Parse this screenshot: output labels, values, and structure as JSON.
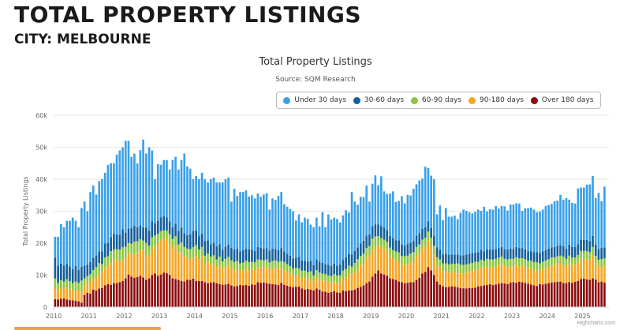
{
  "header": {
    "title": "TOTAL PROPERTY LISTINGS",
    "subtitle": "CITY: MELBOURNE"
  },
  "credit": "Highcharts.com",
  "colors": {
    "under30": "#3aa0e8",
    "d30_60": "#145f9a",
    "d60_90": "#8cc63f",
    "d90_180": "#f5a623",
    "over180": "#8b0d0d"
  },
  "chart_data": {
    "type": "bar",
    "stacked": true,
    "title": "Total Property Listings",
    "subtitle": "Source: SQM Research",
    "ylabel": "Total Property Listings",
    "ylim": [
      0,
      60000
    ],
    "yticks": [
      0,
      10000,
      20000,
      30000,
      40000,
      50000,
      60000
    ],
    "ytick_labels": [
      "0",
      "10k",
      "20k",
      "30k",
      "40k",
      "50k",
      "60k"
    ],
    "xlim": [
      2010,
      2025.75
    ],
    "xticks": [
      "2010",
      "2011",
      "2012",
      "2013",
      "2014",
      "2015",
      "2016",
      "2017",
      "2018",
      "2019",
      "2020",
      "2021",
      "2022",
      "2023",
      "2024",
      "2025"
    ],
    "legend_position": "top-right",
    "grid": true,
    "x_start": "2010-01",
    "series": [
      {
        "name": "Over 180 days",
        "color_key": "over180",
        "values": [
          2500,
          2400,
          2600,
          2700,
          2400,
          2200,
          2100,
          2000,
          1800,
          1400,
          3800,
          4500,
          4200,
          5500,
          5200,
          5800,
          6000,
          6800,
          7200,
          7000,
          7500,
          7500,
          7800,
          8200,
          9000,
          10200,
          9500,
          9200,
          9400,
          9800,
          9300,
          8500,
          9000,
          10000,
          10500,
          9800,
          10200,
          10800,
          10600,
          10000,
          9000,
          8800,
          8500,
          8200,
          8000,
          8600,
          8500,
          8900,
          8200,
          8200,
          8200,
          7800,
          7500,
          7700,
          7800,
          7500,
          7200,
          7000,
          7100,
          7300,
          6800,
          6500,
          6600,
          6900,
          6800,
          6900,
          6700,
          7100,
          7000,
          7800,
          7600,
          7700,
          7500,
          7300,
          7200,
          7100,
          6900,
          7600,
          7000,
          6700,
          6400,
          6200,
          6300,
          6400,
          5800,
          5500,
          5700,
          5500,
          5200,
          5800,
          5400,
          4900,
          4800,
          4500,
          4700,
          5000,
          4600,
          4500,
          5200,
          5000,
          5200,
          5200,
          5500,
          6000,
          6300,
          6800,
          7500,
          8000,
          9500,
          10500,
          11500,
          10500,
          10200,
          9800,
          9000,
          8800,
          8500,
          8000,
          7800,
          7500,
          7600,
          7800,
          7800,
          8500,
          9200,
          10500,
          11000,
          12500,
          11500,
          10000,
          8000,
          7000,
          6500,
          6200,
          6300,
          6500,
          6400,
          6200,
          6000,
          5900,
          5800,
          6000,
          6000,
          6100,
          6500,
          6600,
          6800,
          6900,
          7200,
          6900,
          7100,
          7300,
          7500,
          7400,
          7200,
          7700,
          7800,
          7600,
          7900,
          7800,
          7600,
          7300,
          7100,
          6800,
          6600,
          7200,
          7100,
          7300,
          7500,
          7700,
          7800,
          7900,
          8000,
          7600,
          7500,
          7800,
          7600,
          7900,
          8200,
          8800,
          8900,
          8700,
          8500,
          9000,
          8600,
          7800,
          8000,
          7700
        ]
      },
      {
        "name": "90-180 days",
        "color_key": "d90_180",
        "values": [
          3500,
          3000,
          3200,
          3400,
          3600,
          3300,
          3200,
          3200,
          3500,
          3500,
          2800,
          3200,
          3700,
          3500,
          4000,
          4700,
          5000,
          5700,
          6000,
          6800,
          7500,
          7300,
          6700,
          6300,
          6500,
          6800,
          7000,
          7300,
          7600,
          8000,
          8700,
          8000,
          7000,
          8000,
          8700,
          10200,
          10800,
          10700,
          10700,
          10000,
          9500,
          10000,
          8500,
          8800,
          8000,
          6900,
          6400,
          6600,
          7800,
          6800,
          7800,
          5700,
          6500,
          5600,
          5700,
          5000,
          5800,
          5000,
          5400,
          6000,
          5600,
          5000,
          5400,
          4600,
          4700,
          5300,
          4600,
          4900,
          4500,
          4700,
          4900,
          4700,
          5000,
          4700,
          4700,
          5400,
          4900,
          4700,
          4800,
          4300,
          4200,
          3800,
          3700,
          3500,
          3200,
          3700,
          3200,
          3400,
          2800,
          3600,
          3300,
          3300,
          3500,
          3300,
          2900,
          3000,
          3000,
          3200,
          3800,
          4300,
          5300,
          5000,
          5500,
          6000,
          7000,
          6900,
          8000,
          8300,
          8500,
          8500,
          7800,
          8500,
          8000,
          7800,
          7000,
          6200,
          6300,
          6200,
          5400,
          5600,
          5800,
          6400,
          6600,
          7400,
          7800,
          7900,
          8100,
          8400,
          7400,
          6500,
          5000,
          5500,
          4800,
          4900,
          4500,
          4700,
          4300,
          4800,
          4600,
          4700,
          5000,
          5200,
          5300,
          5600,
          5400,
          5800,
          5400,
          5700,
          5400,
          5500,
          5500,
          6000,
          5900,
          5500,
          5200,
          4900,
          5000,
          5700,
          4900,
          5100,
          5000,
          5000,
          4900,
          4800,
          5000,
          4300,
          4700,
          5000,
          5100,
          5300,
          5300,
          5700,
          5600,
          5800,
          5200,
          5800,
          5600,
          5300,
          5700,
          6300,
          6200,
          6200,
          6200,
          7300,
          5200,
          4700,
          4700,
          5200,
          4900
        ]
      },
      {
        "name": "60-90 days",
        "color_key": "d60_90",
        "values": [
          3000,
          2200,
          2600,
          1900,
          2700,
          2600,
          2200,
          2800,
          2300,
          3400,
          2400,
          2000,
          2400,
          2600,
          3300,
          3300,
          2500,
          3000,
          2700,
          3700,
          3000,
          3300,
          3500,
          4200,
          3400,
          3100,
          3300,
          4000,
          3600,
          3400,
          2800,
          3600,
          3200,
          3800,
          3200,
          2900,
          2800,
          2500,
          2600,
          2800,
          2800,
          3400,
          2600,
          3200,
          2800,
          2800,
          3200,
          3200,
          3400,
          3000,
          2800,
          2600,
          2800,
          2500,
          2700,
          2400,
          2800,
          2300,
          2600,
          2400,
          2200,
          2600,
          2400,
          2200,
          2400,
          2300,
          2800,
          2200,
          2500,
          2400,
          2300,
          2200,
          2400,
          2000,
          2500,
          2100,
          2400,
          2100,
          2300,
          2400,
          2200,
          2100,
          2300,
          2200,
          2400,
          2200,
          2000,
          2300,
          2000,
          2200,
          2100,
          2300,
          2000,
          2100,
          2100,
          2300,
          2300,
          2300,
          2400,
          2600,
          2500,
          2500,
          2800,
          3000,
          2700,
          3000,
          3000,
          2800,
          3400,
          3100,
          2900,
          2600,
          2900,
          2800,
          2600,
          2800,
          2600,
          2900,
          2800,
          2800,
          2700,
          2600,
          2800,
          2900,
          2600,
          2700,
          2600,
          2700,
          2800,
          2700,
          2600,
          2400,
          2400,
          2600,
          2500,
          2400,
          2800,
          2700,
          2700,
          2600,
          2500,
          2400,
          2500,
          2500,
          2300,
          2400,
          2300,
          2500,
          2300,
          2500,
          2500,
          2200,
          2400,
          2200,
          2500,
          2500,
          2300,
          2300,
          2500,
          2400,
          2400,
          2200,
          2500,
          2500,
          2400,
          2200,
          2400,
          2300,
          2400,
          2500,
          2400,
          2300,
          2500,
          2400,
          2400,
          2500,
          2300,
          2300,
          2400,
          2500,
          2500,
          2600,
          2500,
          2500,
          2200,
          2300,
          2300,
          2400,
          2300
        ]
      },
      {
        "name": "30-60 days",
        "color_key": "d30_60",
        "values": [
          6500,
          5400,
          5200,
          5000,
          4800,
          4600,
          4400,
          4900,
          4100,
          4300,
          4000,
          3600,
          3800,
          3800,
          3700,
          3600,
          3900,
          4400,
          4200,
          4400,
          5000,
          4600,
          4600,
          5600,
          4400,
          4500,
          4900,
          5000,
          4400,
          4400,
          4100,
          4800,
          4800,
          5000,
          3800,
          4100,
          4300,
          4400,
          4200,
          4000,
          3800,
          3900,
          4300,
          4600,
          4300,
          4200,
          4700,
          5100,
          4600,
          4200,
          4200,
          4600,
          4100,
          3800,
          3800,
          4100,
          3900,
          3600,
          3800,
          3800,
          3900,
          3900,
          3900,
          3700,
          3900,
          3800,
          4000,
          3700,
          3600,
          3900,
          3800,
          3700,
          3500,
          3700,
          3900,
          3600,
          3600,
          4000,
          3300,
          3300,
          3300,
          3100,
          3200,
          3600,
          3200,
          3100,
          3300,
          3300,
          3100,
          3300,
          3400,
          3400,
          3100,
          3300,
          3200,
          3300,
          3100,
          3300,
          3400,
          3700,
          3600,
          3800,
          3800,
          3700,
          3900,
          4100,
          3900,
          3600,
          3900,
          3800,
          3600,
          3800,
          3800,
          3700,
          3700,
          3700,
          3500,
          3800,
          3600,
          3400,
          3700,
          3400,
          3500,
          3600,
          3500,
          3400,
          3300,
          3200,
          3000,
          3000,
          3100,
          3000,
          2800,
          3000,
          3000,
          2900,
          2900,
          2800,
          2900,
          3000,
          3100,
          3100,
          3100,
          2900,
          3000,
          3100,
          3000,
          3000,
          3100,
          3100,
          3000,
          2900,
          3000,
          3000,
          3100,
          3200,
          3100,
          3200,
          3200,
          3100,
          3100,
          3000,
          3000,
          3100,
          3200,
          3300,
          3300,
          3200,
          3300,
          3200,
          3300,
          3400,
          3300,
          3300,
          3200,
          3400,
          3300,
          3300,
          3400,
          3500,
          3400,
          3500,
          3400,
          3500,
          3500,
          3400,
          3500,
          3400,
          3500
        ]
      },
      {
        "name": "Under 30 days",
        "color_key": "under30",
        "values": [
          6500,
          9000,
          12400,
          12000,
          13500,
          14300,
          16100,
          14100,
          13300,
          18400,
          20000,
          16700,
          21900,
          22600,
          19000,
          22000,
          22600,
          22100,
          24400,
          23100,
          22000,
          25000,
          26400,
          25700,
          28700,
          27400,
          22300,
          22500,
          20000,
          23500,
          27500,
          23100,
          26000,
          22200,
          13800,
          17700,
          16400,
          17600,
          17900,
          16200,
          20900,
          20900,
          19100,
          21200,
          24900,
          21500,
          20500,
          16200,
          17000,
          17800,
          19000,
          19300,
          18100,
          20400,
          20500,
          20000,
          19300,
          21100,
          21100,
          21000,
          14500,
          19000,
          16500,
          18600,
          18200,
          18200,
          16500,
          17100,
          16400,
          16700,
          15900,
          16900,
          17200,
          12800,
          15700,
          15300,
          17000,
          17600,
          14800,
          14700,
          14600,
          14800,
          11600,
          13300,
          11900,
          13500,
          13400,
          11300,
          11900,
          13100,
          11100,
          15800,
          11600,
          15800,
          14500,
          14400,
          14600,
          13200,
          13900,
          14700,
          13000,
          19500,
          15400,
          13300,
          14600,
          13600,
          15600,
          10300,
          13300,
          15300,
          12300,
          15500,
          11300,
          11300,
          13200,
          14700,
          12000,
          12300,
          15100,
          13200,
          15300,
          14700,
          16300,
          16000,
          16500,
          15700,
          18900,
          16700,
          16400,
          17800,
          10300,
          13900,
          10700,
          14300,
          12000,
          11800,
          12200,
          11000,
          13300,
          14300,
          13700,
          13000,
          12400,
          12700,
          13300,
          12200,
          13900,
          11800,
          12600,
          12500,
          13500,
          12400,
          12800,
          13400,
          12200,
          13800,
          13900,
          13700,
          13900,
          11700,
          12800,
          13400,
          13600,
          13300,
          12500,
          12900,
          13000,
          13800,
          13600,
          13600,
          14300,
          14000,
          15700,
          14500,
          15800,
          14100,
          13800,
          13600,
          17400,
          16300,
          16400,
          17300,
          17800,
          18700,
          14600,
          17500,
          14600,
          19000,
          15800
        ]
      }
    ]
  }
}
